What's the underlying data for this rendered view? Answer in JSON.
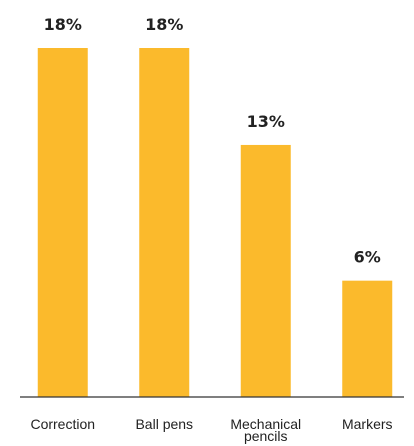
{
  "chart_data": {
    "type": "bar",
    "title": "",
    "xlabel": "",
    "ylabel": "",
    "categories": [
      "Correction",
      "Ball pens",
      "Mechanical\npencils",
      "Markers"
    ],
    "values": [
      18,
      18,
      13,
      6
    ],
    "value_labels": [
      "18%",
      "18%",
      "13%",
      "6%"
    ],
    "unit": "%",
    "ylim": [
      0,
      18
    ],
    "grid": false,
    "legend": "none",
    "colors": {
      "bar": "#FBBA2C",
      "axis": "#333333",
      "text": "#222222"
    }
  }
}
